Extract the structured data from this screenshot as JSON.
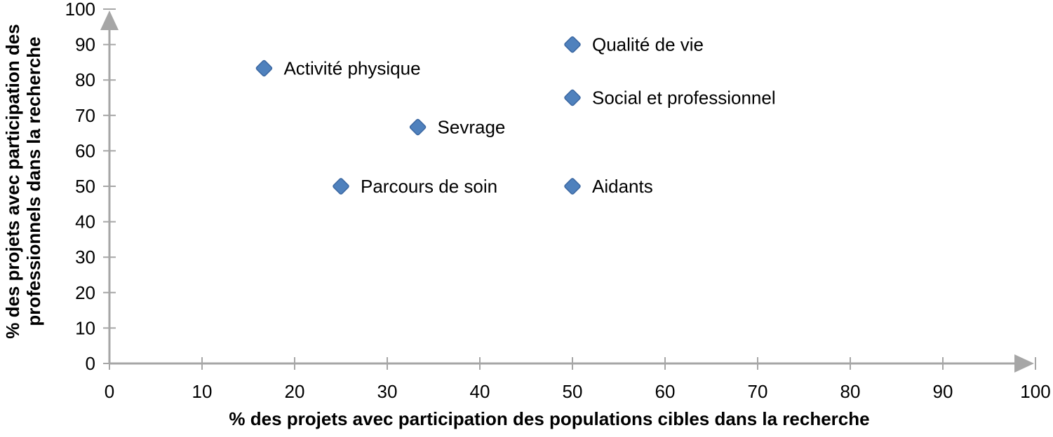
{
  "chart_data": {
    "type": "scatter",
    "title": "",
    "xlabel": "% des projets avec participation des populations cibles dans la recherche",
    "ylabel_lines": [
      "% des projets avec participation des",
      "professionnels dans la recherche"
    ],
    "xlim": [
      0,
      100
    ],
    "ylim": [
      0,
      100
    ],
    "xticks": [
      0,
      10,
      20,
      30,
      40,
      50,
      60,
      70,
      80,
      90,
      100
    ],
    "yticks": [
      0,
      10,
      20,
      30,
      40,
      50,
      60,
      70,
      80,
      90,
      100
    ],
    "grid": false,
    "legend_position": "none",
    "axes_have_arrowheads": true,
    "marker": {
      "shape": "diamond",
      "fill": "#4f81bd",
      "stroke": "#3a66a0",
      "size": 24
    },
    "colors": {
      "axis": "#a6a6a6",
      "text": "#000000",
      "background": "#ffffff"
    },
    "points": [
      {
        "label": "Activité physique",
        "x": 16.7,
        "y": 83.3
      },
      {
        "label": "Qualité de vie",
        "x": 50,
        "y": 90
      },
      {
        "label": "Social et professionnel",
        "x": 50,
        "y": 75
      },
      {
        "label": "Sevrage",
        "x": 33.3,
        "y": 66.7
      },
      {
        "label": "Parcours de soin",
        "x": 25,
        "y": 50
      },
      {
        "label": "Aidants",
        "x": 50,
        "y": 50
      }
    ]
  }
}
